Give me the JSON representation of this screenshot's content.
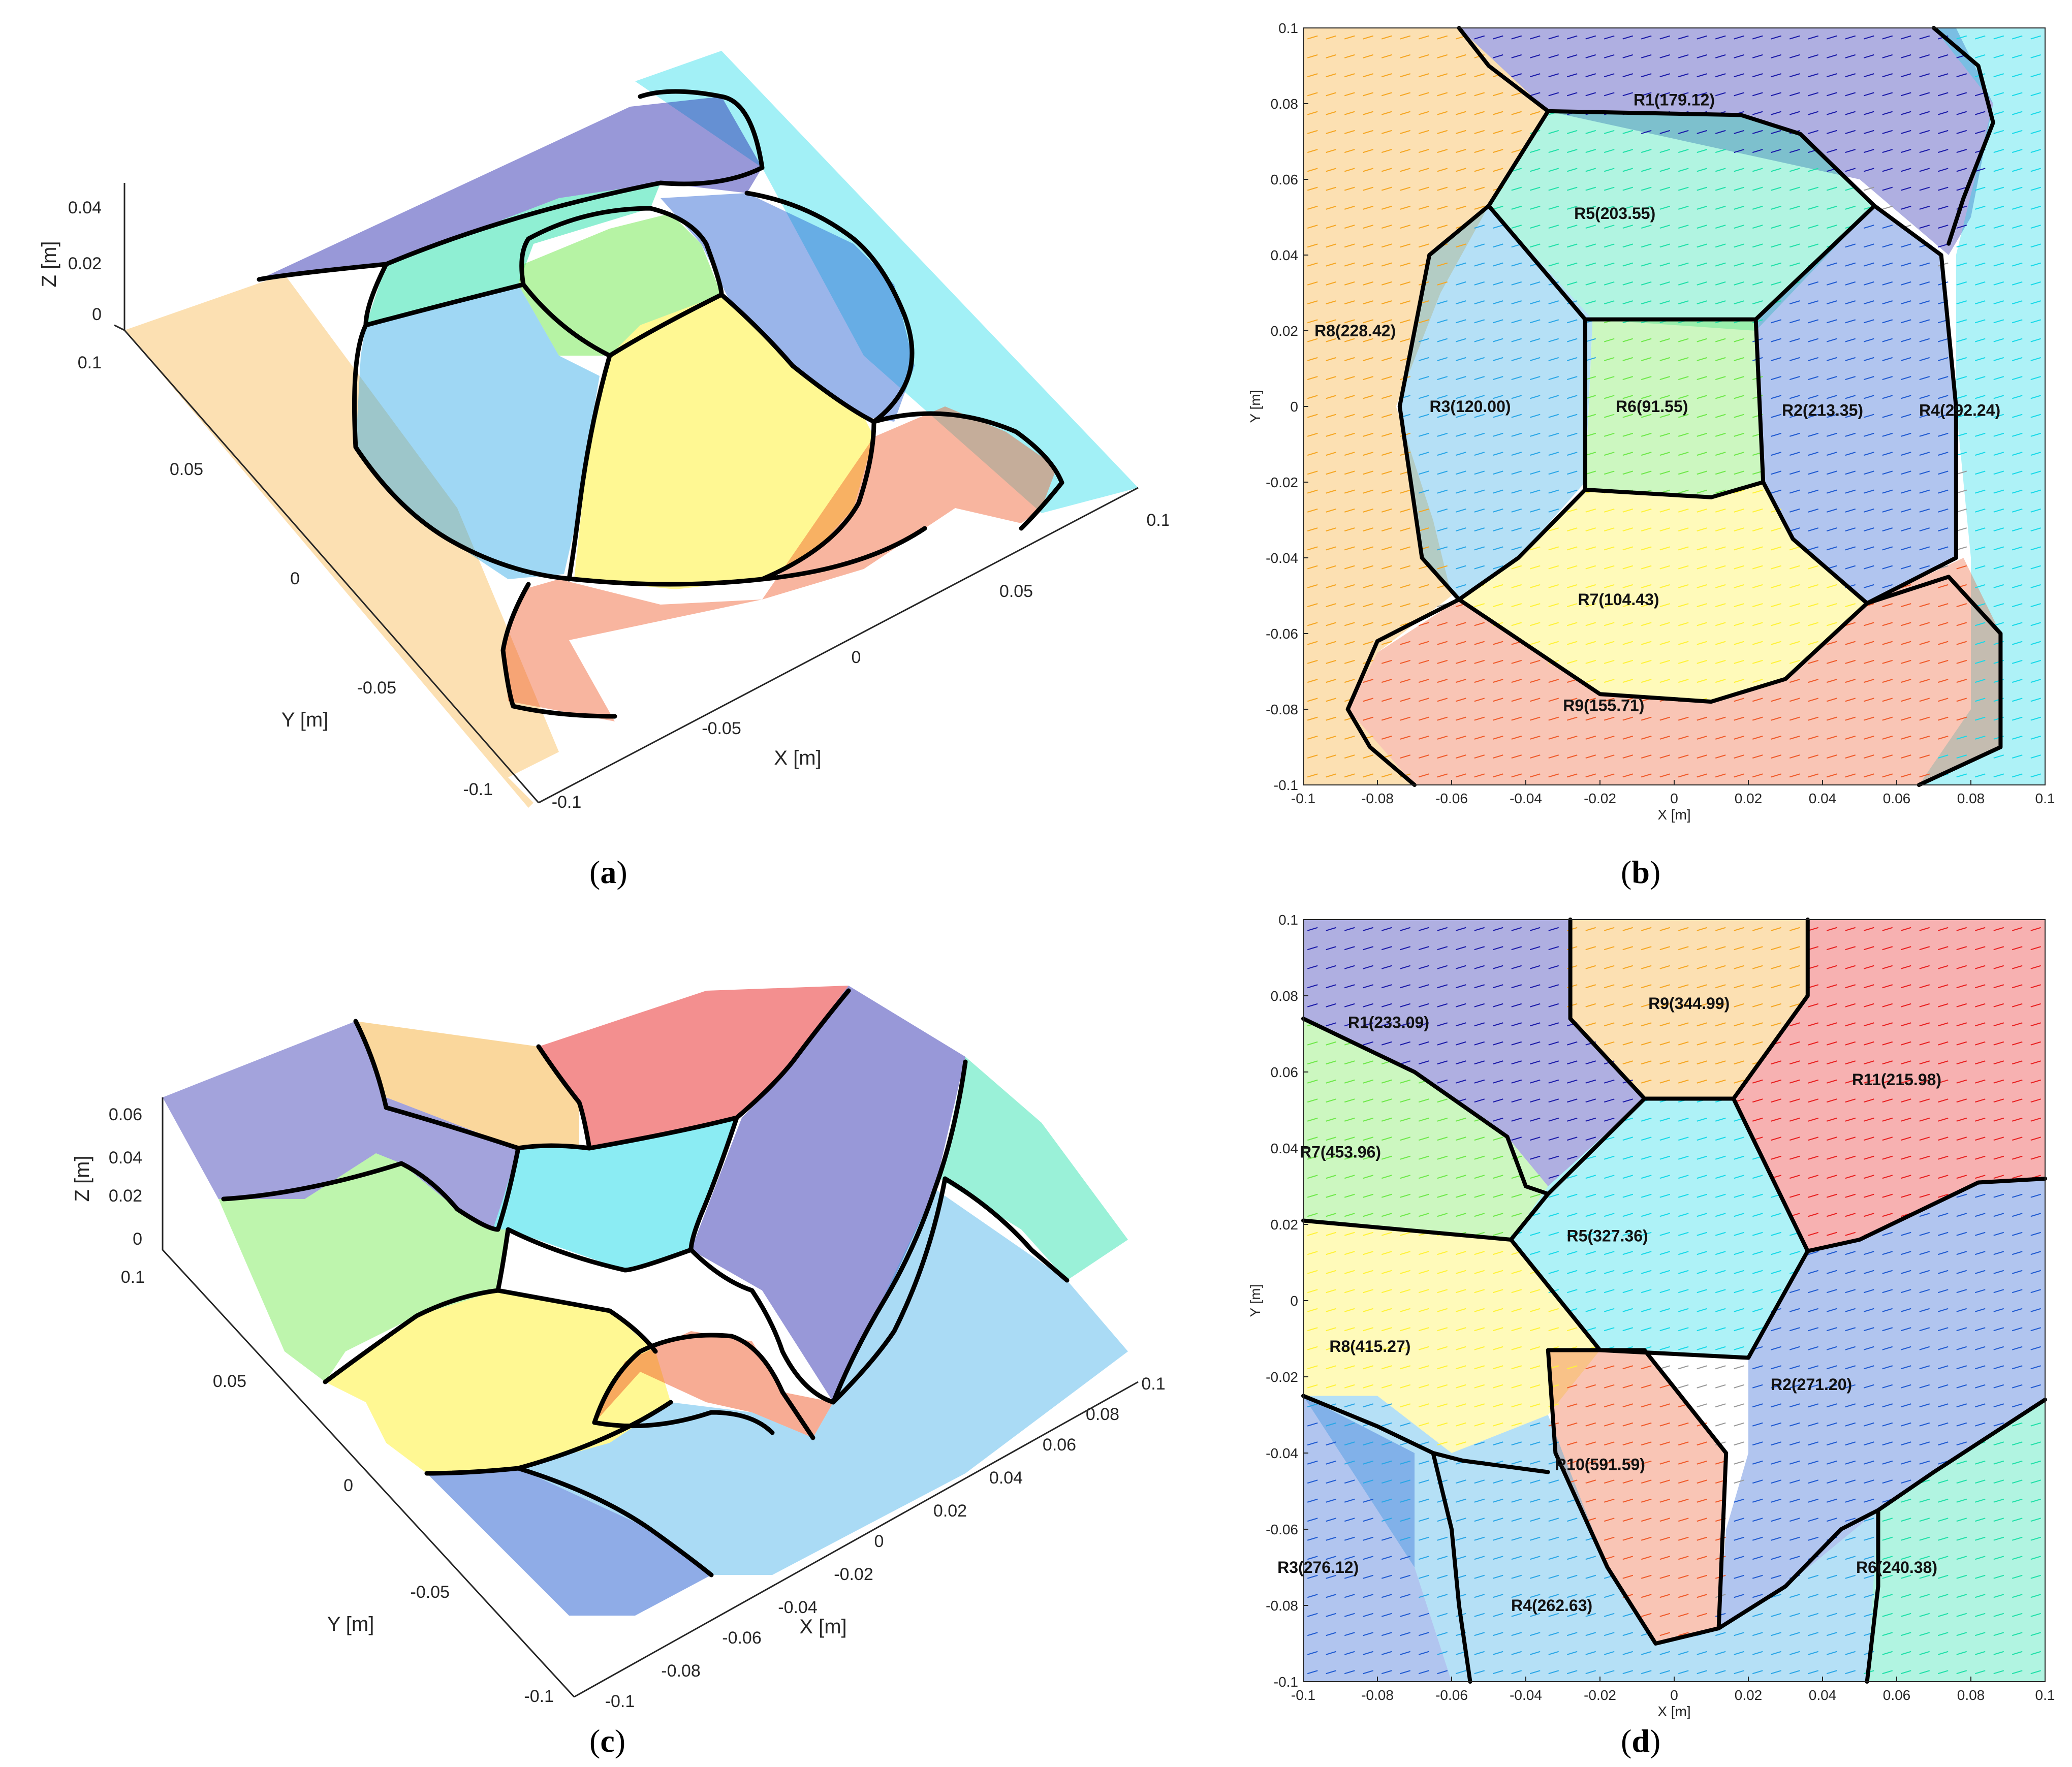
{
  "captions": {
    "a": "a",
    "b": "b",
    "c": "c",
    "d": "d"
  },
  "colors": {
    "orange": "#f5a623",
    "navy": "#1a1aa8",
    "cyan": "#17d9e8",
    "teal": "#1fe0a8",
    "green": "#6ee84a",
    "sky": "#2aa6e6",
    "royal": "#1f5ad0",
    "yellow": "#fff23a",
    "red_orange": "#ef5a2a",
    "red": "#e82020",
    "boundary": "#000000"
  },
  "chart_data": [
    {
      "id": "a",
      "type": "3d-vector-surface",
      "xlabel": "X [m]",
      "ylabel": "Y [m]",
      "zlabel": "Z [m]",
      "xticks": [
        "-0.1",
        "-0.05",
        "0",
        "0.05",
        "0.1"
      ],
      "yticks": [
        "-0.1",
        "-0.05",
        "0",
        "0.05",
        "0.1"
      ],
      "zticks": [
        "0",
        "0.02",
        "0.04"
      ],
      "xlim": [
        -0.1,
        0.1
      ],
      "ylim": [
        -0.1,
        0.1
      ],
      "zlim": [
        0,
        0.04
      ]
    },
    {
      "id": "b",
      "type": "2d-vector-field-segmentation",
      "xlabel": "X [m]",
      "ylabel": "Y [m]",
      "xticks": [
        "-0.1",
        "-0.08",
        "-0.06",
        "-0.04",
        "-0.02",
        "0",
        "0.02",
        "0.04",
        "0.06",
        "0.08",
        "0.1"
      ],
      "yticks": [
        "-0.1",
        "-0.08",
        "-0.06",
        "-0.04",
        "-0.02",
        "0",
        "0.02",
        "0.04",
        "0.06",
        "0.08",
        "0.1"
      ],
      "xlim": [
        -0.1,
        0.1
      ],
      "ylim": [
        -0.1,
        0.1
      ],
      "regions": [
        {
          "label": "R1(179.12)",
          "x": 0.0,
          "y": 0.081
        },
        {
          "label": "R5(203.55)",
          "x": -0.016,
          "y": 0.051
        },
        {
          "label": "R8(228.42)",
          "x": -0.086,
          "y": 0.02
        },
        {
          "label": "R3(120.00)",
          "x": -0.055,
          "y": 0.0
        },
        {
          "label": "R6(91.55)",
          "x": -0.006,
          "y": 0.0
        },
        {
          "label": "R2(213.35)",
          "x": 0.04,
          "y": -0.001
        },
        {
          "label": "R4(292.24)",
          "x": 0.077,
          "y": -0.001
        },
        {
          "label": "R7(104.43)",
          "x": -0.015,
          "y": -0.051
        },
        {
          "label": "R9(155.71)",
          "x": -0.019,
          "y": -0.079
        }
      ]
    },
    {
      "id": "c",
      "type": "3d-vector-surface",
      "xlabel": "X [m]",
      "ylabel": "Y [m]",
      "zlabel": "Z [m]",
      "xticks": [
        "-0.1",
        "-0.08",
        "-0.06",
        "-0.04",
        "-0.02",
        "0",
        "0.02",
        "0.04",
        "0.06",
        "0.08",
        "0.1"
      ],
      "yticks": [
        "-0.1",
        "-0.05",
        "0",
        "0.05",
        "0.1"
      ],
      "zticks": [
        "0",
        "0.02",
        "0.04",
        "0.06"
      ],
      "xlim": [
        -0.1,
        0.1
      ],
      "ylim": [
        -0.1,
        0.1
      ],
      "zlim": [
        0,
        0.06
      ]
    },
    {
      "id": "d",
      "type": "2d-vector-field-segmentation",
      "xlabel": "X [m]",
      "ylabel": "Y [m]",
      "xticks": [
        "-0.1",
        "-0.08",
        "-0.06",
        "-0.04",
        "-0.02",
        "0",
        "0.02",
        "0.04",
        "0.06",
        "0.08",
        "0.1"
      ],
      "yticks": [
        "-0.1",
        "-0.08",
        "-0.06",
        "-0.04",
        "-0.02",
        "0",
        "0.02",
        "0.04",
        "0.06",
        "0.08",
        "0.1"
      ],
      "xlim": [
        -0.1,
        0.1
      ],
      "ylim": [
        -0.1,
        0.1
      ],
      "regions": [
        {
          "label": "R9(344.99)",
          "x": 0.004,
          "y": 0.078
        },
        {
          "label": "R1(233.09)",
          "x": -0.077,
          "y": 0.073
        },
        {
          "label": "R11(215.98)",
          "x": 0.06,
          "y": 0.058
        },
        {
          "label": "R7(453.96)",
          "x": -0.09,
          "y": 0.039
        },
        {
          "label": "R5(327.36)",
          "x": -0.018,
          "y": 0.017
        },
        {
          "label": "R8(415.27)",
          "x": -0.082,
          "y": -0.012
        },
        {
          "label": "R2(271.20)",
          "x": 0.037,
          "y": -0.022
        },
        {
          "label": "R10(591.59)",
          "x": -0.02,
          "y": -0.043
        },
        {
          "label": "R3(276.12)",
          "x": -0.096,
          "y": -0.07
        },
        {
          "label": "R4(262.63)",
          "x": -0.033,
          "y": -0.08
        },
        {
          "label": "R6(240.38)",
          "x": 0.06,
          "y": -0.07
        }
      ]
    }
  ]
}
